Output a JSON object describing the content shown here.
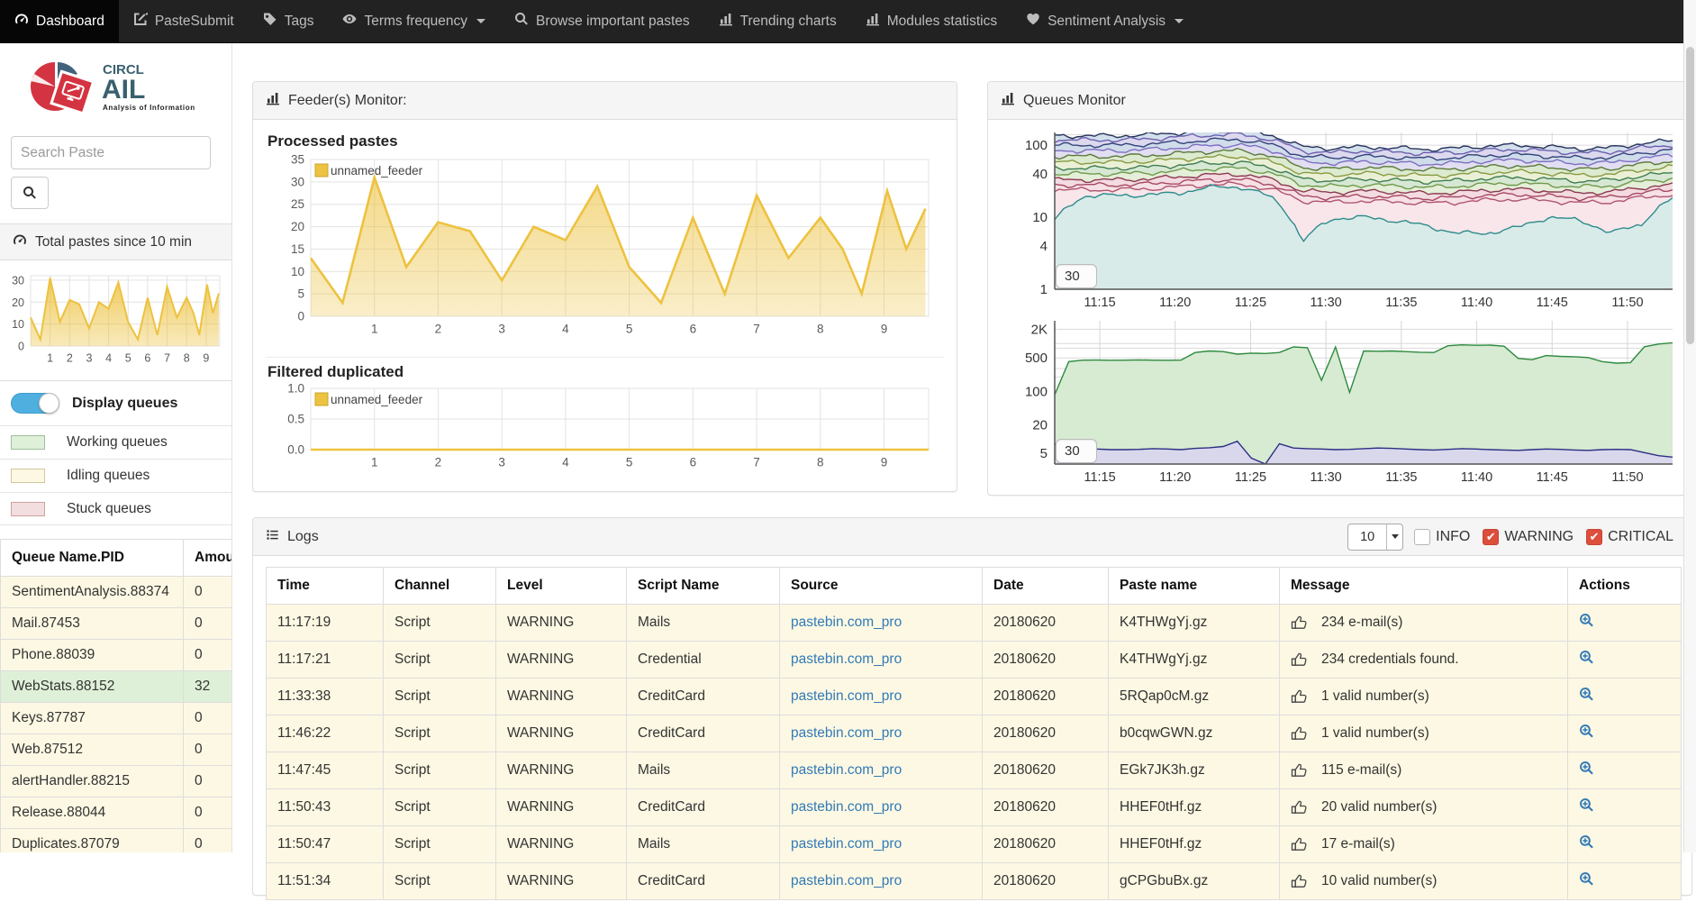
{
  "navbar": {
    "items": [
      {
        "id": "dashboard",
        "label": "Dashboard",
        "icon": "tachometer-icon",
        "active": true
      },
      {
        "id": "pastesubmit",
        "label": "PasteSubmit",
        "icon": "edit-icon",
        "active": false
      },
      {
        "id": "tags",
        "label": "Tags",
        "icon": "tag-icon",
        "active": false
      },
      {
        "id": "terms-frequency",
        "label": "Terms frequency",
        "icon": "eye-icon",
        "active": false,
        "caret": true
      },
      {
        "id": "browse-important-pastes",
        "label": "Browse important pastes",
        "icon": "search-icon",
        "active": false
      },
      {
        "id": "trending-charts",
        "label": "Trending charts",
        "icon": "bar-chart-icon",
        "active": false
      },
      {
        "id": "modules-statistics",
        "label": "Modules statistics",
        "icon": "bar-chart-icon",
        "active": false
      },
      {
        "id": "sentiment-analysis",
        "label": "Sentiment Analysis",
        "icon": "heart-icon",
        "active": false,
        "caret": true
      }
    ]
  },
  "sidebar": {
    "logo": {
      "brand_top": "CIRCL",
      "brand_main": "AIL",
      "tagline": "Analysis of Information Leaks"
    },
    "search_placeholder": "Search Paste",
    "total_pastes_title": "Total pastes since 10 min",
    "display_queues_label": "Display queues",
    "legend": [
      {
        "label": "Working queues",
        "color": "#dff0d8",
        "border": "#9fbf9f"
      },
      {
        "label": "Idling queues",
        "color": "#fcf8e3",
        "border": "#cfc89f"
      },
      {
        "label": "Stuck queues",
        "color": "#f2dede",
        "border": "#cfa0a0"
      }
    ],
    "queue_table": {
      "headers": [
        "Queue Name.PID",
        "Amount"
      ],
      "rows": [
        {
          "name": "SentimentAnalysis.88374",
          "amount": "0",
          "status": "idling"
        },
        {
          "name": "Mail.87453",
          "amount": "0",
          "status": "idling"
        },
        {
          "name": "Phone.88039",
          "amount": "0",
          "status": "idling"
        },
        {
          "name": "WebStats.88152",
          "amount": "32",
          "status": "working"
        },
        {
          "name": "Keys.87787",
          "amount": "0",
          "status": "idling"
        },
        {
          "name": "Web.87512",
          "amount": "0",
          "status": "idling"
        },
        {
          "name": "alertHandler.88215",
          "amount": "0",
          "status": "idling"
        },
        {
          "name": "Release.88044",
          "amount": "0",
          "status": "idling"
        },
        {
          "name": "Duplicates.87079",
          "amount": "0",
          "status": "idling"
        }
      ]
    }
  },
  "feeder_panel": {
    "title": "Feeder(s) Monitor:",
    "charts": [
      {
        "title": "Processed pastes",
        "legend": "unnamed_feeder",
        "type": "area",
        "line_color": "#EDC240",
        "ymax": 35,
        "xmax": 9.7,
        "yticks": [
          {
            "v": 0,
            "label": "0"
          },
          {
            "v": 5,
            "label": "5"
          },
          {
            "v": 10,
            "label": "10"
          },
          {
            "v": 15,
            "label": "15"
          },
          {
            "v": 20,
            "label": "20"
          },
          {
            "v": 25,
            "label": "25"
          },
          {
            "v": 30,
            "label": "30"
          },
          {
            "v": 35,
            "label": "35"
          }
        ],
        "xticks": [
          1,
          2,
          3,
          4,
          5,
          6,
          7,
          8,
          9
        ],
        "points": [
          [
            0,
            13
          ],
          [
            0.5,
            3
          ],
          [
            1,
            31
          ],
          [
            1.5,
            11
          ],
          [
            2,
            21
          ],
          [
            2.5,
            19
          ],
          [
            3,
            8
          ],
          [
            3.5,
            20
          ],
          [
            4,
            17
          ],
          [
            4.5,
            29
          ],
          [
            5,
            11
          ],
          [
            5.5,
            3
          ],
          [
            6,
            22
          ],
          [
            6.5,
            5
          ],
          [
            7,
            27
          ],
          [
            7.5,
            13
          ],
          [
            8,
            22
          ],
          [
            8.35,
            15
          ],
          [
            8.65,
            5
          ],
          [
            9.05,
            28
          ],
          [
            9.35,
            15
          ],
          [
            9.65,
            24
          ]
        ]
      },
      {
        "title": "Filtered duplicated",
        "legend": "unnamed_feeder",
        "type": "area",
        "line_color": "#EDC240",
        "ymax": 1,
        "xmax": 9.7,
        "yticks": [
          {
            "v": 0,
            "label": "0.0"
          },
          {
            "v": 0.5,
            "label": "0.5"
          },
          {
            "v": 1,
            "label": "1.0"
          }
        ],
        "xticks": [
          1,
          2,
          3,
          4,
          5,
          6,
          7,
          8,
          9
        ],
        "points": [
          [
            0,
            0
          ],
          [
            9.7,
            0
          ]
        ]
      }
    ]
  },
  "queues_panel": {
    "title": "Queues Monitor",
    "charts": [
      {
        "kind": "gen",
        "ymin": 1,
        "ymax": 150,
        "roll": "30",
        "yticks": [
          [
            100,
            "100"
          ],
          [
            40,
            "40"
          ],
          [
            10,
            "10"
          ],
          [
            4,
            "4"
          ],
          [
            1,
            "1"
          ]
        ],
        "grid": [
          1,
          2,
          3,
          4,
          5,
          6,
          8,
          10,
          20,
          30,
          40,
          50,
          60,
          80,
          100,
          140
        ],
        "xticks": [
          [
            0.073,
            "11:15"
          ],
          [
            0.195,
            "11:20"
          ],
          [
            0.317,
            "11:25"
          ],
          [
            0.439,
            "11:30"
          ],
          [
            0.561,
            "11:35"
          ],
          [
            0.683,
            "11:40"
          ],
          [
            0.805,
            "11:45"
          ],
          [
            0.927,
            "11:50"
          ]
        ],
        "shapes": {
          "main": [
            1.0,
            1.0,
            1.0,
            1.03,
            1.1,
            1.17,
            1.2,
            1.02,
            0.7,
            0.67,
            0.7,
            0.68,
            0.65,
            0.67,
            0.72,
            0.74,
            0.7,
            0.66,
            0.68,
            0.78,
            0.86
          ],
          "teal": [
            0.45,
            1.0,
            1.0,
            1.02,
            1.08,
            1.3,
            1.32,
            0.95,
            0.22,
            0.48,
            0.5,
            0.45,
            0.38,
            0.3,
            0.3,
            0.36,
            0.5,
            0.45,
            0.3,
            0.4,
            0.9
          ]
        },
        "series": [
          {
            "line": "#27335b",
            "fill": "#d3e0ec",
            "base": 135,
            "seed": 1
          },
          {
            "line": "#6b5fae",
            "fill": "#dcd8ee",
            "base": 118,
            "seed": 2
          },
          {
            "line": "#31437a",
            "fill": "#d0dcea",
            "base": 100,
            "seed": 3
          },
          {
            "line": "#7d6fc0",
            "fill": "#e2def2",
            "base": 84,
            "seed": 4
          },
          {
            "line": "#5a7a3a",
            "fill": "#dcead0",
            "base": 70,
            "seed": 5
          },
          {
            "line": "#8a9a40",
            "fill": "#eaf0d6",
            "base": 58,
            "seed": 6
          },
          {
            "line": "#3f7d4f",
            "fill": "#d6e8d4",
            "base": 48,
            "seed": 7
          },
          {
            "line": "#6f9a4a",
            "fill": "#e4eed8",
            "base": 40,
            "seed": 8
          },
          {
            "line": "#8b3a50",
            "fill": "#f3dbe1",
            "base": 33,
            "seed": 9
          },
          {
            "line": "#a54760",
            "fill": "#f6e1e6",
            "base": 28,
            "seed": 10
          },
          {
            "line": "#b05570",
            "fill": "#f8e6ea",
            "base": 24,
            "seed": 11
          },
          {
            "line": "#2e8b8b",
            "fill": "#d8ebe9",
            "base": 20,
            "seed": 12,
            "shape": "teal"
          }
        ]
      },
      {
        "kind": "points",
        "ymin": 3,
        "ymax": 3000,
        "roll": "30",
        "yticks": [
          [
            2000,
            "2K"
          ],
          [
            500,
            "500"
          ],
          [
            100,
            "100"
          ],
          [
            20,
            "20"
          ],
          [
            5,
            "5"
          ]
        ],
        "grid": [
          5,
          8,
          10,
          20,
          30,
          50,
          80,
          100,
          200,
          300,
          500,
          800,
          1000,
          2000
        ],
        "xticks": [
          [
            0.073,
            "11:15"
          ],
          [
            0.195,
            "11:20"
          ],
          [
            0.317,
            "11:25"
          ],
          [
            0.439,
            "11:30"
          ],
          [
            0.561,
            "11:35"
          ],
          [
            0.683,
            "11:40"
          ],
          [
            0.805,
            "11:45"
          ],
          [
            0.927,
            "11:50"
          ]
        ],
        "series": [
          {
            "line": "#2d8a3e",
            "fill": "#d7ead2",
            "points": [
              85,
              420,
              450,
              452,
              448,
              450,
              455,
              450,
              448,
              452,
              650,
              700,
              680,
              600,
              630,
              620,
              650,
              850,
              820,
              170,
              850,
              95,
              700,
              690,
              700,
              680,
              660,
              650,
              900,
              940,
              920,
              930,
              880,
              490,
              460,
              560,
              540,
              530,
              510,
              420,
              390,
              400,
              860,
              980,
              1040
            ]
          },
          {
            "line": "#2b2e83",
            "fill": "#d9d7ec",
            "points": [
              8,
              7,
              6.5,
              6.2,
              6,
              6,
              6.1,
              6.3,
              6.2,
              6,
              6.4,
              6.6,
              7,
              9,
              4,
              2.5,
              8,
              6.5,
              6.3,
              6.2,
              6,
              6.1,
              6.3,
              6.5,
              6.4,
              6.2,
              6,
              5.9,
              6.1,
              6.3,
              6.2,
              6,
              5.9,
              5.8,
              6,
              6.2,
              6.1,
              5.9,
              5.8,
              6,
              6.1,
              6,
              5.2,
              4.5,
              4.2
            ]
          }
        ]
      }
    ]
  },
  "logs_panel": {
    "title": "Logs",
    "page_size": "10",
    "filters": [
      {
        "label": "INFO",
        "checked": false
      },
      {
        "label": "WARNING",
        "checked": true
      },
      {
        "label": "CRITICAL",
        "checked": true
      }
    ],
    "table": {
      "headers": [
        "Time",
        "Channel",
        "Level",
        "Script Name",
        "Source",
        "Date",
        "Paste name",
        "Message",
        "Actions"
      ],
      "rows": [
        {
          "time": "11:17:19",
          "channel": "Script",
          "level": "WARNING",
          "script": "Mails",
          "source": "pastebin.com_pro",
          "date": "20180620",
          "paste": "K4THWgYj.gz",
          "message": "234 e-mail(s)"
        },
        {
          "time": "11:17:21",
          "channel": "Script",
          "level": "WARNING",
          "script": "Credential",
          "source": "pastebin.com_pro",
          "date": "20180620",
          "paste": "K4THWgYj.gz",
          "message": "234 credentials found."
        },
        {
          "time": "11:33:38",
          "channel": "Script",
          "level": "WARNING",
          "script": "CreditCard",
          "source": "pastebin.com_pro",
          "date": "20180620",
          "paste": "5RQap0cM.gz",
          "message": "1 valid number(s)"
        },
        {
          "time": "11:46:22",
          "channel": "Script",
          "level": "WARNING",
          "script": "CreditCard",
          "source": "pastebin.com_pro",
          "date": "20180620",
          "paste": "b0cqwGWN.gz",
          "message": "1 valid number(s)"
        },
        {
          "time": "11:47:45",
          "channel": "Script",
          "level": "WARNING",
          "script": "Mails",
          "source": "pastebin.com_pro",
          "date": "20180620",
          "paste": "EGk7JK3h.gz",
          "message": "115 e-mail(s)"
        },
        {
          "time": "11:50:43",
          "channel": "Script",
          "level": "WARNING",
          "script": "CreditCard",
          "source": "pastebin.com_pro",
          "date": "20180620",
          "paste": "HHEF0tHf.gz",
          "message": "20 valid number(s)"
        },
        {
          "time": "11:50:47",
          "channel": "Script",
          "level": "WARNING",
          "script": "Mails",
          "source": "pastebin.com_pro",
          "date": "20180620",
          "paste": "HHEF0tHf.gz",
          "message": "17 e-mail(s)"
        },
        {
          "time": "11:51:34",
          "channel": "Script",
          "level": "WARNING",
          "script": "CreditCard",
          "source": "pastebin.com_pro",
          "date": "20180620",
          "paste": "gCPGbuBx.gz",
          "message": "10 valid number(s)"
        }
      ]
    }
  }
}
